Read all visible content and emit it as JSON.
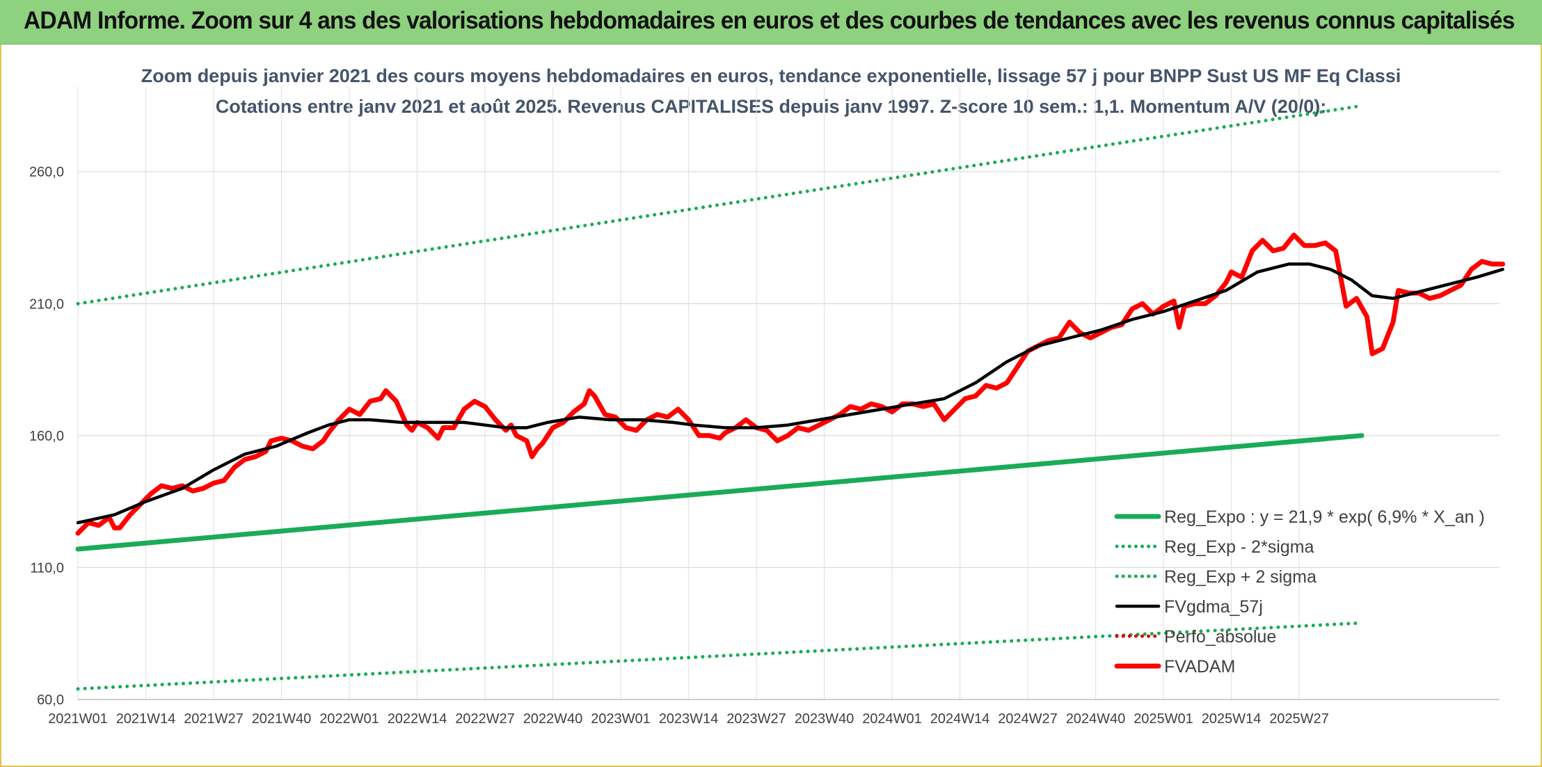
{
  "header": {
    "title": "ADAM Informe. Zoom sur 4 ans des valorisations hebdomadaires en euros et des courbes de tendances avec les revenus connus capitalisés"
  },
  "chart_data": {
    "type": "line",
    "subtitle_line1": "Zoom depuis janvier 2021 des cours moyens hebdomadaires en euros, tendance exponentielle, lissage 57 j pour BNPP Sust US MF Eq Classi",
    "subtitle_line2": "Cotations entre janv 2021 et août 2025. Revenus CAPITALISES depuis janv 1997. Z-score 10 sem.: 1,1. Momentum A/V (20/0):",
    "y_ticks": [
      "60,0",
      "110,0",
      "160,0",
      "210,0",
      "260,0"
    ],
    "x_ticks": [
      "2021W01",
      "2021W14",
      "2021W27",
      "2021W40",
      "2022W01",
      "2022W14",
      "2022W27",
      "2022W40",
      "2023W01",
      "2023W14",
      "2023W27",
      "2023W40",
      "2024W01",
      "2024W14",
      "2024W27",
      "2024W40",
      "2025W01",
      "2025W14",
      "2025W27"
    ],
    "ylim": [
      60,
      300
    ],
    "grid": true,
    "legend_position": "bottom-right",
    "week_count": 247,
    "series": [
      {
        "name": "Reg_Expo : y = 21,9 * exp( 6,9% *  X_an )",
        "style": "solid-thick",
        "color": "#1aab58",
        "points": [
          [
            0,
            117
          ],
          [
            246,
            160
          ]
        ]
      },
      {
        "name": "Reg_Exp - 2*sigma",
        "style": "dotted",
        "color": "#1aab58",
        "points": [
          [
            0,
            64
          ],
          [
            246,
            89
          ]
        ]
      },
      {
        "name": "Reg_Exp + 2 sigma",
        "style": "dotted",
        "color": "#1aab58",
        "points": [
          [
            0,
            210
          ],
          [
            246,
            285
          ]
        ]
      },
      {
        "name": "FVgdma_57j",
        "style": "solid",
        "color": "#000000",
        "points": [
          [
            0,
            127
          ],
          [
            7,
            130
          ],
          [
            13,
            135
          ],
          [
            20,
            140
          ],
          [
            26,
            147
          ],
          [
            32,
            153
          ],
          [
            38,
            156
          ],
          [
            44,
            161
          ],
          [
            48,
            164
          ],
          [
            52,
            166
          ],
          [
            56,
            166
          ],
          [
            62,
            165
          ],
          [
            68,
            165
          ],
          [
            74,
            165
          ],
          [
            78,
            164
          ],
          [
            82,
            163
          ],
          [
            86,
            163
          ],
          [
            90,
            165
          ],
          [
            96,
            167
          ],
          [
            102,
            166
          ],
          [
            108,
            166
          ],
          [
            114,
            165
          ],
          [
            118,
            164
          ],
          [
            124,
            163
          ],
          [
            130,
            163
          ],
          [
            136,
            164
          ],
          [
            142,
            166
          ],
          [
            148,
            168
          ],
          [
            154,
            170
          ],
          [
            160,
            172
          ],
          [
            166,
            174
          ],
          [
            172,
            180
          ],
          [
            178,
            188
          ],
          [
            184,
            194
          ],
          [
            190,
            197
          ],
          [
            196,
            200
          ],
          [
            202,
            204
          ],
          [
            208,
            207
          ],
          [
            214,
            211
          ],
          [
            220,
            215
          ],
          [
            226,
            222
          ],
          [
            232,
            225
          ],
          [
            236,
            225
          ],
          [
            240,
            223
          ],
          [
            244,
            219
          ],
          [
            248,
            213
          ],
          [
            252,
            212
          ],
          [
            256,
            214
          ],
          [
            262,
            217
          ],
          [
            268,
            220
          ],
          [
            273,
            223
          ]
        ]
      },
      {
        "name": "Perfo_absolue",
        "style": "dotted",
        "color": "#e00000",
        "points": []
      },
      {
        "name": "FVADAM",
        "style": "solid-thick",
        "color": "#ff0000",
        "points": [
          [
            0,
            123
          ],
          [
            2,
            127
          ],
          [
            4,
            126
          ],
          [
            6,
            129
          ],
          [
            7,
            125
          ],
          [
            8,
            125
          ],
          [
            10,
            130
          ],
          [
            12,
            134
          ],
          [
            14,
            138
          ],
          [
            16,
            141
          ],
          [
            18,
            140
          ],
          [
            20,
            141
          ],
          [
            22,
            139
          ],
          [
            24,
            140
          ],
          [
            26,
            142
          ],
          [
            28,
            143
          ],
          [
            30,
            148
          ],
          [
            32,
            151
          ],
          [
            34,
            152
          ],
          [
            36,
            154
          ],
          [
            37,
            158
          ],
          [
            39,
            159
          ],
          [
            41,
            158
          ],
          [
            43,
            156
          ],
          [
            45,
            155
          ],
          [
            47,
            158
          ],
          [
            48,
            161
          ],
          [
            50,
            166
          ],
          [
            52,
            170
          ],
          [
            54,
            168
          ],
          [
            56,
            173
          ],
          [
            58,
            174
          ],
          [
            59,
            177
          ],
          [
            61,
            173
          ],
          [
            63,
            164
          ],
          [
            64,
            162
          ],
          [
            65,
            165
          ],
          [
            67,
            163
          ],
          [
            69,
            159
          ],
          [
            70,
            163
          ],
          [
            72,
            163
          ],
          [
            74,
            170
          ],
          [
            76,
            173
          ],
          [
            78,
            171
          ],
          [
            80,
            166
          ],
          [
            82,
            162
          ],
          [
            83,
            164
          ],
          [
            84,
            160
          ],
          [
            86,
            158
          ],
          [
            87,
            152
          ],
          [
            88,
            155
          ],
          [
            89,
            157
          ],
          [
            91,
            163
          ],
          [
            93,
            165
          ],
          [
            95,
            169
          ],
          [
            97,
            172
          ],
          [
            98,
            177
          ],
          [
            99,
            175
          ],
          [
            101,
            168
          ],
          [
            103,
            167
          ],
          [
            105,
            163
          ],
          [
            107,
            162
          ],
          [
            109,
            166
          ],
          [
            111,
            168
          ],
          [
            113,
            167
          ],
          [
            115,
            170
          ],
          [
            117,
            166
          ],
          [
            119,
            160
          ],
          [
            121,
            160
          ],
          [
            123,
            159
          ],
          [
            124,
            161
          ],
          [
            126,
            163
          ],
          [
            128,
            166
          ],
          [
            130,
            163
          ],
          [
            132,
            162
          ],
          [
            134,
            158
          ],
          [
            136,
            160
          ],
          [
            138,
            163
          ],
          [
            140,
            162
          ],
          [
            142,
            164
          ],
          [
            144,
            166
          ],
          [
            146,
            168
          ],
          [
            148,
            171
          ],
          [
            150,
            170
          ],
          [
            152,
            172
          ],
          [
            154,
            171
          ],
          [
            156,
            169
          ],
          [
            158,
            172
          ],
          [
            160,
            172
          ],
          [
            162,
            171
          ],
          [
            164,
            172
          ],
          [
            166,
            166
          ],
          [
            168,
            170
          ],
          [
            170,
            174
          ],
          [
            172,
            175
          ],
          [
            174,
            179
          ],
          [
            176,
            178
          ],
          [
            178,
            180
          ],
          [
            180,
            186
          ],
          [
            182,
            192
          ],
          [
            184,
            194
          ],
          [
            186,
            196
          ],
          [
            188,
            197
          ],
          [
            190,
            203
          ],
          [
            192,
            199
          ],
          [
            194,
            197
          ],
          [
            196,
            199
          ],
          [
            198,
            201
          ],
          [
            200,
            202
          ],
          [
            202,
            208
          ],
          [
            204,
            210
          ],
          [
            206,
            206
          ],
          [
            208,
            209
          ],
          [
            210,
            211
          ],
          [
            211,
            201
          ],
          [
            212,
            209
          ],
          [
            214,
            210
          ],
          [
            216,
            210
          ],
          [
            218,
            213
          ],
          [
            220,
            218
          ],
          [
            221,
            222
          ],
          [
            223,
            220
          ],
          [
            225,
            230
          ],
          [
            227,
            234
          ],
          [
            229,
            230
          ],
          [
            231,
            231
          ],
          [
            233,
            236
          ],
          [
            235,
            232
          ],
          [
            237,
            232
          ],
          [
            239,
            233
          ],
          [
            241,
            230
          ],
          [
            243,
            209
          ],
          [
            245,
            212
          ],
          [
            247,
            205
          ],
          [
            248,
            191
          ],
          [
            250,
            193
          ],
          [
            252,
            203
          ],
          [
            253,
            215
          ],
          [
            255,
            214
          ],
          [
            257,
            214
          ],
          [
            259,
            212
          ],
          [
            261,
            213
          ],
          [
            263,
            215
          ],
          [
            265,
            217
          ],
          [
            267,
            223
          ],
          [
            269,
            226
          ],
          [
            271,
            225
          ],
          [
            273,
            225
          ]
        ]
      }
    ]
  }
}
